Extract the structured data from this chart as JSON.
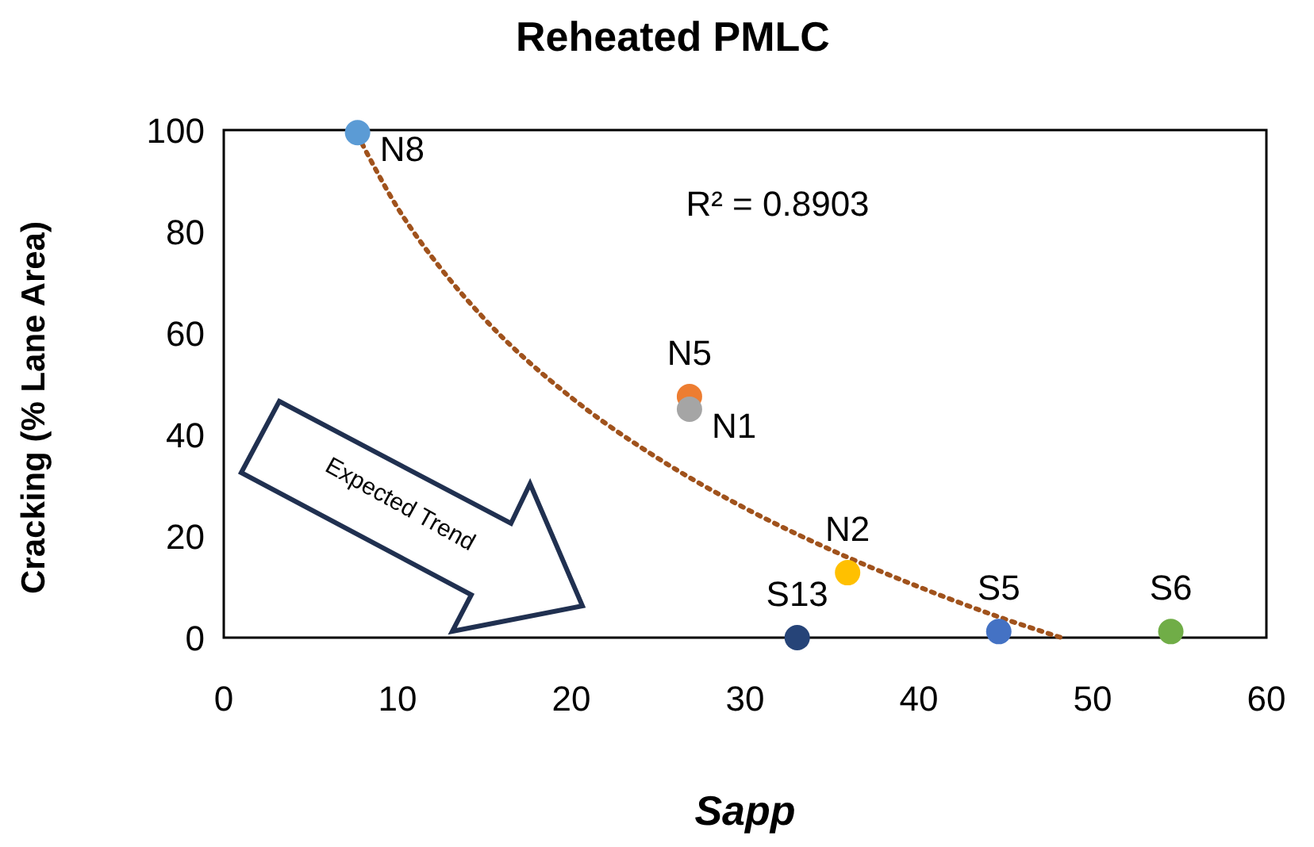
{
  "chart_data": {
    "type": "scatter",
    "title": "Reheated PMLC",
    "xlabel": "Sapp",
    "ylabel": "Cracking (% Lane Area)",
    "xlim": [
      0,
      60
    ],
    "xticks": [
      0,
      10,
      20,
      30,
      40,
      50,
      60
    ],
    "ylim": [
      0,
      100
    ],
    "yticks": [
      0,
      20,
      40,
      60,
      80,
      100
    ],
    "grid": false,
    "marker": "circle",
    "annotations": [
      "R² = 0.8903",
      "Expected Trend"
    ],
    "series": [
      {
        "name": "N8",
        "color": "#5b9bd5",
        "x": [
          7.7
        ],
        "values": [
          99.5
        ]
      },
      {
        "name": "N5",
        "color": "#ed7d31",
        "x": [
          26.8
        ],
        "values": [
          47.5
        ]
      },
      {
        "name": "N1",
        "color": "#a5a5a5",
        "x": [
          26.8
        ],
        "values": [
          45
        ]
      },
      {
        "name": "N2",
        "color": "#ffc000",
        "x": [
          35.9
        ],
        "values": [
          12.8
        ]
      },
      {
        "name": "S13",
        "color": "#264478",
        "x": [
          33
        ],
        "values": [
          0
        ]
      },
      {
        "name": "S5",
        "color": "#4472c4",
        "x": [
          44.6
        ],
        "values": [
          1.2
        ]
      },
      {
        "name": "S6",
        "color": "#70ad47",
        "x": [
          54.5
        ],
        "values": [
          1.2
        ]
      },
      {
        "type": "line",
        "color": "#a0521c",
        "line_style": "dotted",
        "marker": "none",
        "x": [
          7.7,
          10,
          12.5,
          15,
          20,
          25,
          30,
          35,
          40,
          45,
          48.2
        ],
        "values": [
          99,
          84.7,
          72.7,
          62.8,
          47.3,
          35.3,
          25.5,
          17.2,
          10,
          3.6,
          0
        ]
      }
    ]
  }
}
